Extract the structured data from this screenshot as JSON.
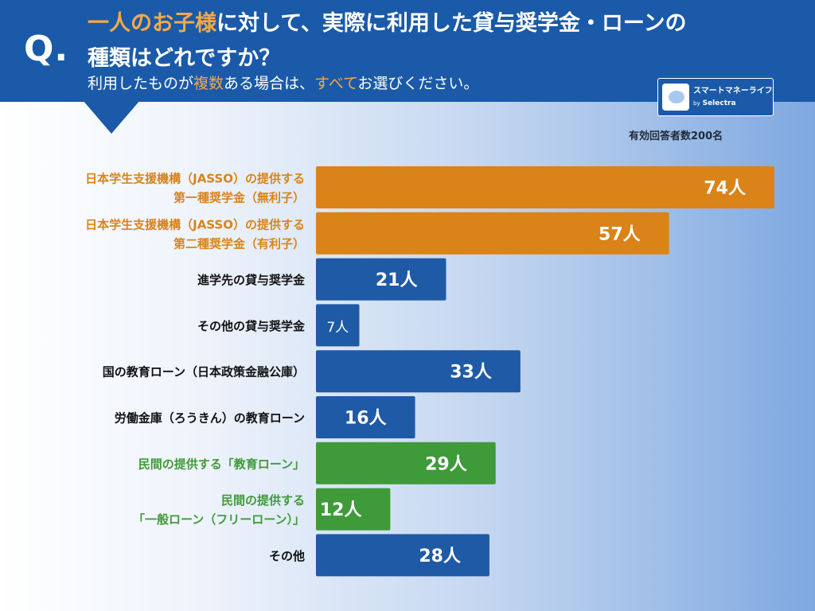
{
  "header": {
    "q_mark": "Q.",
    "title_part1": "一人のお子様",
    "title_part2": "に対して、実際に利用した貸与奨学金・ローンの",
    "title_line2": "種類はどれですか？",
    "subtitle_part1": "利用したものが",
    "subtitle_part2": "複数",
    "subtitle_part3": "ある場合は、",
    "subtitle_part4": "すべて",
    "subtitle_part5": "お選びください。"
  },
  "logo": {
    "text": "スマートマネーライフ",
    "by": "by",
    "brand": "Selectra",
    "icon": "piggy-bank-icon"
  },
  "respondents": "有効回答者数200名",
  "colors": {
    "header": "#1a5aa8",
    "orange": "#d98319",
    "blue": "#1f5aa6",
    "green": "#3f9a3a",
    "highlight": "#f5a84a"
  },
  "chart_data": {
    "type": "bar",
    "orientation": "horizontal",
    "unit": "人",
    "categories": [
      [
        "日本学生支援機構（JASSO）の提供する",
        "第一種奨学金（無利子）"
      ],
      [
        "日本学生支援機構（JASSO）の提供する",
        "第二種奨学金（有利子）"
      ],
      [
        "進学先の貸与奨学金"
      ],
      [
        "その他の貸与奨学金"
      ],
      [
        "国の教育ローン（日本政策金融公庫）"
      ],
      [
        "労働金庫（ろうきん）の教育ローン"
      ],
      [
        "民間の提供する「教育ローン」"
      ],
      [
        "民間の提供する",
        "「一般ローン（フリーローン）」"
      ],
      [
        "その他"
      ]
    ],
    "values": [
      74,
      57,
      21,
      7,
      33,
      16,
      29,
      12,
      28
    ],
    "value_labels": [
      "74人",
      "57人",
      "21人",
      "7人",
      "33人",
      "16人",
      "29人",
      "12人",
      "28人"
    ],
    "bar_colors": [
      "orange",
      "orange",
      "blue",
      "blue",
      "blue",
      "blue",
      "green",
      "green",
      "blue"
    ],
    "label_colors": [
      "orange",
      "orange",
      "black",
      "black",
      "black",
      "black",
      "green",
      "green",
      "black"
    ],
    "xlim": [
      0,
      74
    ],
    "grid": false,
    "legend": "none"
  }
}
